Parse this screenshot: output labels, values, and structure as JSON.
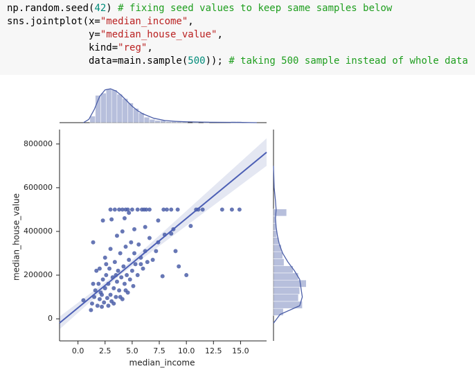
{
  "code": {
    "lines": [
      [
        {
          "text": "np.random.seed(",
          "color": "#000000"
        },
        {
          "text": "42",
          "color": "#008c7a"
        },
        {
          "text": ") ",
          "color": "#000000"
        },
        {
          "text": "# fixing seed values to keep same samples below",
          "color": "#1e9e1e"
        }
      ],
      [
        {
          "text": "sns.jointplot(x=",
          "color": "#000000"
        },
        {
          "text": "\"median_income\"",
          "color": "#ba2121"
        },
        {
          "text": ",",
          "color": "#000000"
        }
      ],
      [
        {
          "text": "              y=",
          "color": "#000000"
        },
        {
          "text": "\"median_house_value\"",
          "color": "#ba2121"
        },
        {
          "text": ",",
          "color": "#000000"
        }
      ],
      [
        {
          "text": "              kind=",
          "color": "#000000"
        },
        {
          "text": "\"reg\"",
          "color": "#ba2121"
        },
        {
          "text": ",",
          "color": "#000000"
        }
      ],
      [
        {
          "text": "              data=main.sample(",
          "color": "#000000"
        },
        {
          "text": "500",
          "color": "#008c7a"
        },
        {
          "text": ")); ",
          "color": "#000000"
        },
        {
          "text": "# taking 500 sample instead of whole data",
          "color": "#1e9e1e"
        }
      ]
    ]
  },
  "chart_data": {
    "type": "jointplot",
    "x_label": "median_income",
    "y_label": "median_house_value",
    "color": "#4c5fa8",
    "xlim": [
      -1.7,
      17.4
    ],
    "ylim": [
      -101000,
      866000
    ],
    "xticks": [
      {
        "value": 0,
        "label": "0.0"
      },
      {
        "value": 2.5,
        "label": "2.5"
      },
      {
        "value": 5,
        "label": "5.0"
      },
      {
        "value": 7.5,
        "label": "7.5"
      },
      {
        "value": 10,
        "label": "10.0"
      },
      {
        "value": 12.5,
        "label": "12.5"
      },
      {
        "value": 15,
        "label": "15.0"
      }
    ],
    "yticks": [
      0,
      200000,
      400000,
      600000,
      800000
    ],
    "x": [
      3.0,
      3.4,
      3.8,
      4.1,
      4.4,
      4.6,
      5.0,
      5.5,
      5.9,
      6.1,
      6.3,
      6.6,
      7.9,
      8.2,
      8.6,
      9.2,
      10.9,
      11.1,
      11.5,
      13.3,
      14.2,
      14.9,
      0.5,
      1.4,
      2.3,
      3.1,
      4.3,
      4.7,
      5.2,
      6.2,
      7.4,
      8.8,
      10.4,
      10.0,
      9.3,
      7.8,
      8.6,
      8.0,
      7.4,
      6.6,
      9.0,
      7.2,
      6.9,
      5.8,
      1.2,
      1.3,
      1.5,
      1.6,
      1.8,
      1.9,
      2.0,
      2.1,
      2.2,
      2.3,
      2.4,
      2.5,
      2.6,
      2.7,
      2.8,
      2.9,
      3.0,
      3.1,
      3.2,
      3.3,
      3.4,
      3.5,
      3.6,
      3.7,
      3.8,
      3.9,
      4.0,
      4.1,
      4.2,
      4.3,
      4.4,
      4.5,
      4.6,
      4.7,
      4.8,
      4.9,
      5.0,
      5.1,
      5.2,
      5.3,
      5.5,
      5.6,
      5.8,
      6.0,
      6.2,
      6.4,
      2.0,
      1.7,
      2.5,
      3.0,
      3.6,
      4.1,
      2.2,
      2.8,
      3.3,
      3.9,
      4.4,
      1.4,
      2.6,
      3.5
    ],
    "y": [
      500001,
      500001,
      500001,
      500001,
      500001,
      500001,
      500001,
      500001,
      500001,
      500001,
      500001,
      500001,
      500001,
      500001,
      500001,
      500001,
      500001,
      500001,
      500001,
      500001,
      500001,
      500001,
      85000,
      350000,
      450000,
      455000,
      460000,
      485000,
      410000,
      420000,
      450000,
      410000,
      425000,
      200000,
      240000,
      195000,
      390000,
      385000,
      350000,
      370000,
      310000,
      310000,
      270000,
      250000,
      40000,
      70000,
      100000,
      130000,
      60000,
      160000,
      90000,
      120000,
      55000,
      180000,
      75000,
      140000,
      200000,
      95000,
      160000,
      230000,
      110000,
      80000,
      190000,
      140000,
      260000,
      100000,
      170000,
      220000,
      130000,
      300000,
      190000,
      90000,
      240000,
      160000,
      330000,
      200000,
      120000,
      270000,
      180000,
      350000,
      220000,
      150000,
      300000,
      250000,
      200000,
      340000,
      280000,
      230000,
      310000,
      260000,
      230000,
      220000,
      280000,
      320000,
      380000,
      400000,
      110000,
      60000,
      70000,
      100000,
      130000,
      160000,
      250000,
      200000
    ],
    "regression": {
      "x": [
        -1.7,
        3.9,
        17.4
      ],
      "y": [
        -19000,
        210000,
        762000
      ],
      "ci_lower": [
        -48000,
        200000,
        700000
      ],
      "ci_upper": [
        10000,
        220000,
        826000
      ]
    },
    "x_hist": {
      "bins": [
        1.1,
        1.6,
        2.1,
        2.6,
        3.1,
        3.6,
        4.1,
        4.6,
        5.1,
        5.6,
        6.1,
        6.6,
        7.1,
        7.6,
        8.1,
        8.6,
        9.1,
        9.6,
        10.1,
        10.6,
        11.1,
        11.6,
        12.1,
        12.6,
        13.1,
        13.6,
        14.1,
        14.6,
        15.1
      ],
      "counts": [
        6,
        25,
        27,
        31,
        30,
        26,
        22,
        18,
        13,
        9,
        5,
        3,
        2,
        2,
        1,
        1,
        1,
        1,
        0,
        1,
        0,
        1,
        0,
        0,
        0,
        0,
        1,
        1
      ],
      "lim": [
        0,
        33
      ],
      "kde_x": [
        0.5,
        1,
        1.5,
        2,
        2.5,
        3,
        3.5,
        4,
        4.5,
        5,
        5.5,
        6,
        7,
        8,
        9,
        10,
        12,
        15,
        16.5
      ],
      "kde_y": [
        0,
        3,
        12,
        24,
        30,
        31,
        29,
        25,
        20,
        15,
        11,
        8,
        4,
        2,
        1.2,
        0.8,
        0.4,
        0.2,
        0
      ]
    },
    "y_hist": {
      "bins": [
        15000,
        47500,
        80000,
        112500,
        145000,
        177500,
        210000,
        242500,
        275000,
        307500,
        340000,
        372500,
        405000,
        437500,
        470000,
        502500
      ],
      "counts": [
        15,
        44,
        38,
        40,
        50,
        38,
        30,
        16,
        14,
        12,
        8,
        5,
        4,
        3,
        20
      ],
      "lim": [
        0,
        55
      ],
      "kde_y": [
        -20000,
        20000,
        60000,
        100000,
        140000,
        180000,
        220000,
        260000,
        300000,
        340000,
        380000,
        420000,
        460000,
        500000,
        540000,
        600000,
        700000
      ],
      "kde_x": [
        0,
        10,
        40,
        44,
        42,
        40,
        32,
        22,
        14,
        9,
        6,
        4,
        3,
        4,
        3,
        1,
        0
      ]
    }
  }
}
